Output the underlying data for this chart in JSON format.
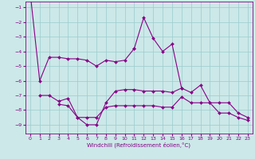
{
  "xlabel": "Windchill (Refroidissement éolien,°C)",
  "background_color": "#cce8e8",
  "grid_color": "#99cccc",
  "line_color": "#880088",
  "x_ticks": [
    0,
    1,
    2,
    3,
    4,
    5,
    6,
    7,
    8,
    9,
    10,
    11,
    12,
    13,
    14,
    15,
    16,
    17,
    18,
    19,
    20,
    21,
    22,
    23
  ],
  "y_ticks": [
    -1,
    -2,
    -3,
    -4,
    -5,
    -6,
    -7,
    -8,
    -9
  ],
  "ylim": [
    -9.6,
    -0.6
  ],
  "xlim": [
    -0.5,
    23.5
  ],
  "series": [
    [
      0,
      -6.0,
      -4.4,
      -4.4,
      -4.5,
      -4.5,
      -4.6,
      -5.0,
      -4.6,
      -4.7,
      -4.6,
      -3.8,
      null,
      null,
      null,
      null,
      null,
      null,
      null,
      null,
      null,
      null,
      null,
      null
    ],
    [
      null,
      null,
      null,
      null,
      null,
      null,
      null,
      null,
      null,
      null,
      null,
      -3.8,
      -1.7,
      -3.1,
      -4.0,
      -3.5,
      -6.5,
      null,
      null,
      null,
      null,
      null,
      null,
      null
    ],
    [
      null,
      -7.0,
      -7.0,
      -7.4,
      -7.2,
      -8.5,
      -9.0,
      -9.0,
      -7.5,
      -6.7,
      -6.6,
      -6.6,
      -6.7,
      -6.7,
      -6.7,
      -6.8,
      -6.5,
      -6.8,
      -6.3,
      -7.5,
      -8.2,
      -8.2,
      -8.5,
      -8.7
    ],
    [
      null,
      null,
      null,
      -7.6,
      -7.7,
      -8.5,
      -8.5,
      -8.5,
      -7.8,
      -7.7,
      -7.7,
      -7.7,
      -7.7,
      -7.7,
      -7.8,
      -7.8,
      -7.1,
      -7.5,
      -7.5,
      -7.5,
      -7.5,
      -7.5,
      -8.2,
      -8.5
    ]
  ]
}
